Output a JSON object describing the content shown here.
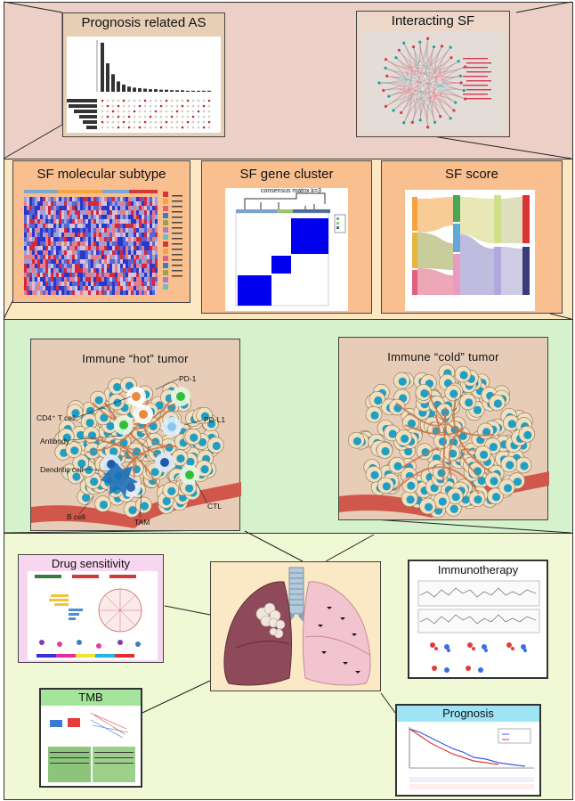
{
  "top": {
    "prognosis_as": {
      "title": "Prognosis related AS"
    },
    "interacting_sf": {
      "title": "Interacting SF"
    }
  },
  "middle": {
    "molecular_subtype": {
      "title": "SF molecular subtype"
    },
    "gene_cluster": {
      "title": "SF gene cluster",
      "figure_title": "consensus matrix k=3"
    },
    "sf_score": {
      "title": "SF score"
    }
  },
  "immune": {
    "hot": {
      "title": "Immune “hot” tumor",
      "labels": {
        "pd1": "PD-1",
        "cd4": "CD4⁺ T cell",
        "pdl1": "PD-L1",
        "antibody": "Antibody",
        "dendritic": "Dendritic cell",
        "bcell": "B cell",
        "tam": "TAM",
        "ctl": "CTL"
      }
    },
    "cold": {
      "title": "Immune “cold” tumor"
    }
  },
  "bottom": {
    "drug": {
      "title": "Drug sensitivity"
    },
    "immuno": {
      "title": "Immunotherapy"
    },
    "tmb": {
      "title": "TMB"
    },
    "prognosis": {
      "title": "Prognosis"
    }
  },
  "colors": {
    "top_band": "#ecd0c8",
    "mid_band": "#fbe8c3",
    "immune_band": "#d6f2cc",
    "bottom_band": "#f1f8d6",
    "panel_orange": "#f9bf8f",
    "panel_tan": "#e7cfb5",
    "drug_bg": "#f7d6f0",
    "tmb_title": "#a5e59b",
    "prognosis_title": "#9ee4f5"
  }
}
